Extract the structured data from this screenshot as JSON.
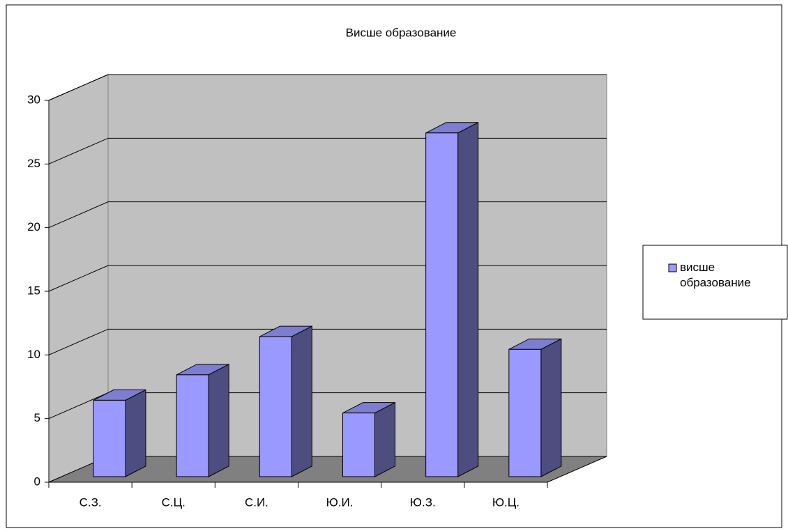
{
  "chart_data": {
    "type": "bar3d",
    "title": "Висше образование",
    "categories": [
      "С.З.",
      "С.Ц.",
      "С.И.",
      "Ю.И.",
      "Ю.З.",
      "Ю.Ц."
    ],
    "series": [
      {
        "name": "висше образование",
        "color": "#9999ff",
        "values": [
          6,
          8,
          11,
          5,
          27,
          10
        ]
      }
    ],
    "ylim": [
      0,
      30
    ],
    "yticks": [
      0,
      5,
      10,
      15,
      20,
      25,
      30
    ],
    "grid": true,
    "legend": "right"
  }
}
